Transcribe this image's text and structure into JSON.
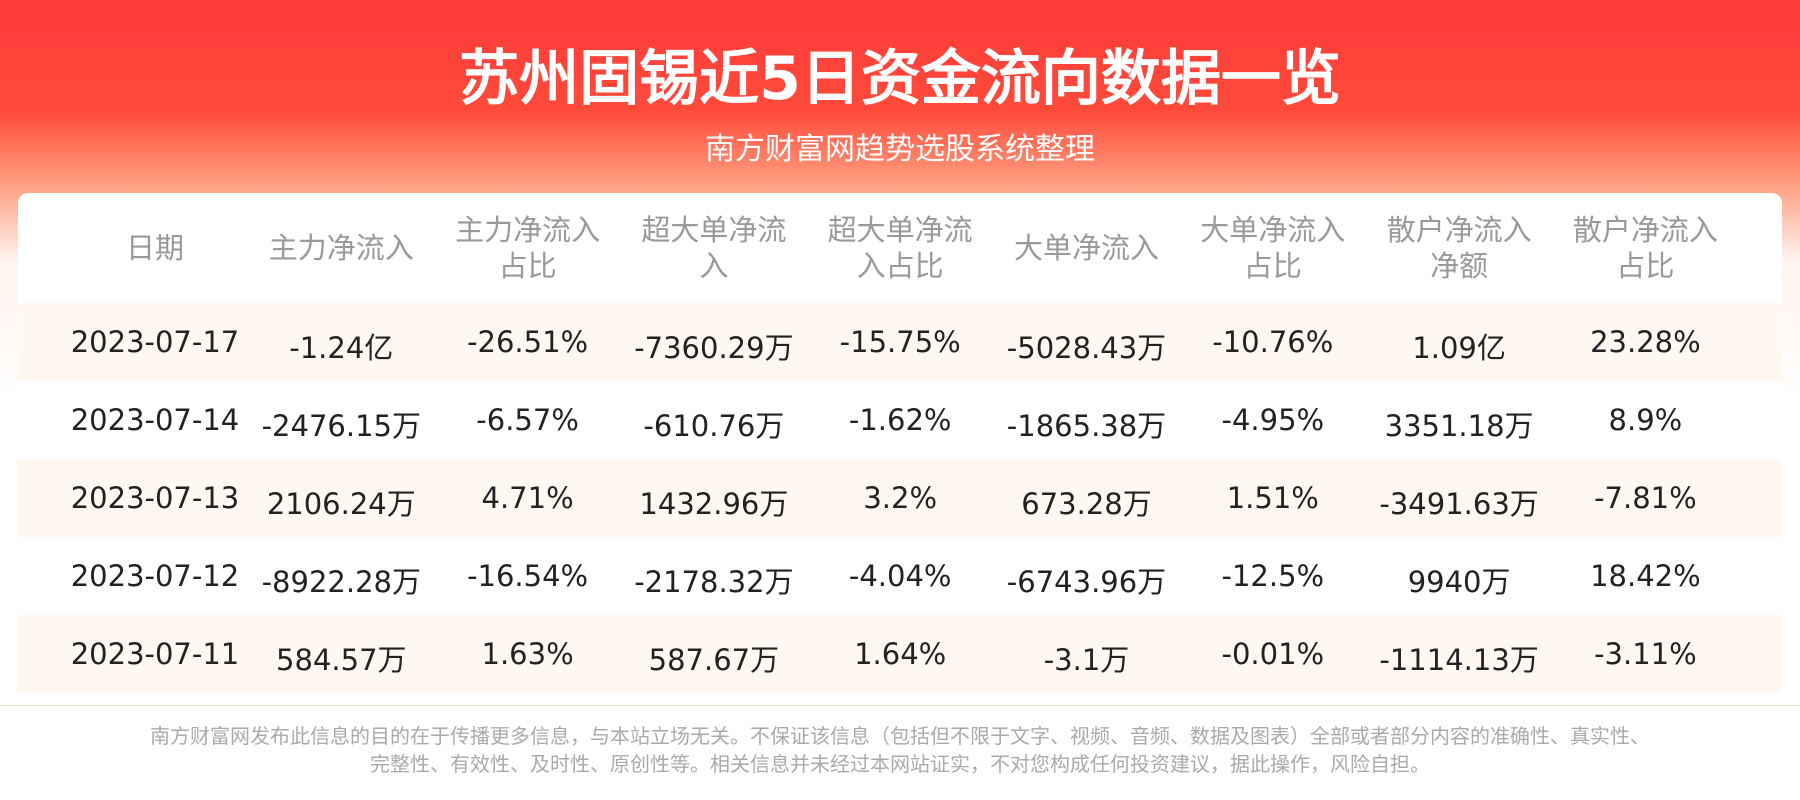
{
  "header": {
    "title": "苏州固锡近5日资金流向数据一览",
    "subtitle": "南方财富网趋势选股系统整理"
  },
  "table": {
    "columns": [
      [
        "日期"
      ],
      [
        "主力净流入"
      ],
      [
        "主力净流入",
        "占比"
      ],
      [
        "超大单净流",
        "入"
      ],
      [
        "超大单净流",
        "入占比"
      ],
      [
        "大单净流入"
      ],
      [
        "大单净流入",
        "占比"
      ],
      [
        "散户净流入",
        "净额"
      ],
      [
        "散户净流入",
        "占比"
      ]
    ],
    "rows": [
      [
        "2023-07-17",
        "-1.24亿",
        "-26.51%",
        "-7360.29万",
        "-15.75%",
        "-5028.43万",
        "-10.76%",
        "1.09亿",
        "23.28%"
      ],
      [
        "2023-07-14",
        "-2476.15万",
        "-6.57%",
        "-610.76万",
        "-1.62%",
        "-1865.38万",
        "-4.95%",
        "3351.18万",
        "8.9%"
      ],
      [
        "2023-07-13",
        "2106.24万",
        "4.71%",
        "1432.96万",
        "3.2%",
        "673.28万",
        "1.51%",
        "-3491.63万",
        "-7.81%"
      ],
      [
        "2023-07-12",
        "-8922.28万",
        "-16.54%",
        "-2178.32万",
        "-4.04%",
        "-6743.96万",
        "-12.5%",
        "9940万",
        "18.42%"
      ],
      [
        "2023-07-11",
        "584.57万",
        "1.63%",
        "587.67万",
        "1.64%",
        "-3.1万",
        "-0.01%",
        "-1114.13万",
        "-3.11%"
      ]
    ]
  },
  "footer": [
    "南方财富网发布此信息的目的在于传播更多信息，与本站立场无关。不保证该信息（包括但不限于文字、视频、音频、数据及图表）全部或者部分内容的准确性、真实性、",
    "完整性、有效性、及时性、原创性等。相关信息并未经过本网站证实，不对您构成任何投资建议，据此操作，风险自担。"
  ]
}
